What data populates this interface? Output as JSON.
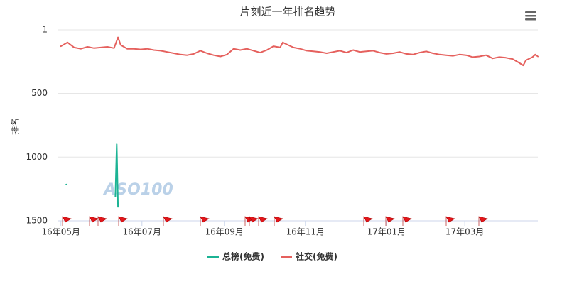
{
  "chart_data": {
    "type": "line",
    "title": "片刻近一年排名趋势",
    "y_label": "排名",
    "watermark": "ASO100",
    "ylim": [
      1,
      1500
    ],
    "yticks": [
      1,
      500,
      1000,
      1500
    ],
    "y_inverted": true,
    "grid": true,
    "xlim": [
      -2,
      359
    ],
    "xticks": [
      {
        "value": 0,
        "label": "16年05月"
      },
      {
        "value": 61,
        "label": "16年07月"
      },
      {
        "value": 123,
        "label": "16年09月"
      },
      {
        "value": 184,
        "label": "16年11月"
      },
      {
        "value": 245,
        "label": "17年01月"
      },
      {
        "value": 304,
        "label": "17年03月"
      }
    ],
    "series": [
      {
        "name": "总榜(免费)",
        "color": "#1bb394",
        "x": [
          4,
          20,
          41,
          42,
          43
        ],
        "values": [
          1215,
          null,
          1310,
          900,
          1390
        ]
      },
      {
        "name": "社交(免费)",
        "color": "#e5605d",
        "x": [
          0,
          5,
          10,
          15,
          20,
          25,
          30,
          35,
          40,
          43,
          45,
          50,
          55,
          60,
          65,
          70,
          75,
          80,
          85,
          90,
          95,
          100,
          105,
          110,
          115,
          120,
          125,
          130,
          135,
          140,
          145,
          150,
          155,
          160,
          165,
          167,
          170,
          175,
          180,
          185,
          190,
          195,
          200,
          205,
          210,
          215,
          220,
          225,
          230,
          235,
          240,
          245,
          250,
          255,
          260,
          265,
          270,
          275,
          280,
          285,
          290,
          295,
          300,
          305,
          310,
          315,
          320,
          325,
          330,
          335,
          340,
          345,
          348,
          350,
          355,
          357,
          359
        ],
        "values": [
          130,
          100,
          140,
          150,
          135,
          145,
          140,
          135,
          145,
          60,
          120,
          150,
          150,
          155,
          150,
          160,
          165,
          175,
          185,
          195,
          200,
          190,
          165,
          185,
          200,
          210,
          195,
          150,
          160,
          150,
          165,
          180,
          160,
          130,
          140,
          100,
          115,
          140,
          150,
          165,
          170,
          175,
          185,
          175,
          165,
          180,
          160,
          175,
          170,
          165,
          180,
          190,
          185,
          175,
          190,
          195,
          180,
          170,
          185,
          195,
          200,
          205,
          195,
          200,
          215,
          210,
          200,
          225,
          215,
          220,
          230,
          260,
          280,
          240,
          215,
          195,
          210
        ]
      }
    ],
    "legend": "bottom"
  }
}
